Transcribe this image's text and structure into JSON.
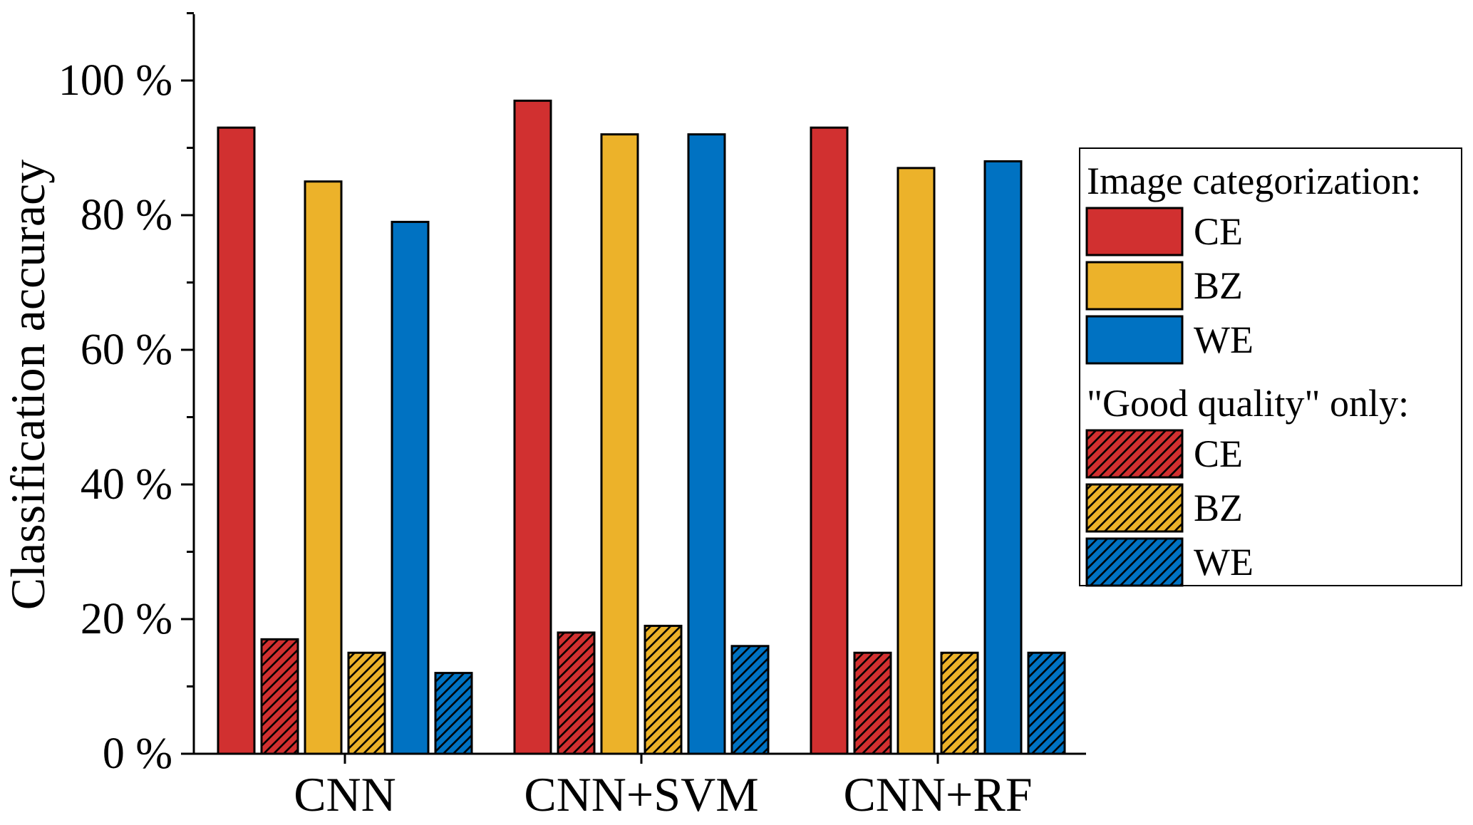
{
  "chart_data": {
    "type": "bar",
    "categories": [
      "CNN",
      "CNN+SVM",
      "CNN+RF"
    ],
    "ylabel": "Classification accuracy",
    "xlabel": "",
    "ylim": [
      0,
      110
    ],
    "yticks": [
      0,
      20,
      40,
      60,
      80,
      100
    ],
    "ytick_labels": [
      "0 %",
      "20 %",
      "40 %",
      "60 %",
      "80 %",
      "100 %"
    ],
    "grid": false,
    "legend_position": "right",
    "series": [
      {
        "group": "Image categorization:",
        "name": "CE",
        "color": "#d13030",
        "hatched": false,
        "values": [
          93,
          97,
          93
        ]
      },
      {
        "group": "\"Good quality\" only:",
        "name": "CE",
        "color": "#d13030",
        "hatched": true,
        "values": [
          17,
          18,
          15
        ]
      },
      {
        "group": "Image categorization:",
        "name": "BZ",
        "color": "#ecb22a",
        "hatched": false,
        "values": [
          85,
          92,
          87
        ]
      },
      {
        "group": "\"Good quality\" only:",
        "name": "BZ",
        "color": "#ecb22a",
        "hatched": true,
        "values": [
          15,
          19,
          15
        ]
      },
      {
        "group": "Image categorization:",
        "name": "WE",
        "color": "#0072c2",
        "hatched": false,
        "values": [
          79,
          92,
          88
        ]
      },
      {
        "group": "\"Good quality\" only:",
        "name": "WE",
        "color": "#0072c2",
        "hatched": true,
        "values": [
          12,
          16,
          15
        ]
      }
    ],
    "legend": {
      "sections": [
        {
          "title": "Image categorization:",
          "entries": [
            {
              "label": "CE",
              "color": "#d13030",
              "hatched": false
            },
            {
              "label": "BZ",
              "color": "#ecb22a",
              "hatched": false
            },
            {
              "label": "WE",
              "color": "#0072c2",
              "hatched": false
            }
          ]
        },
        {
          "title": "\"Good quality\" only:",
          "entries": [
            {
              "label": "CE",
              "color": "#d13030",
              "hatched": true
            },
            {
              "label": "BZ",
              "color": "#ecb22a",
              "hatched": true
            },
            {
              "label": "WE",
              "color": "#0072c2",
              "hatched": true
            }
          ]
        }
      ]
    }
  }
}
